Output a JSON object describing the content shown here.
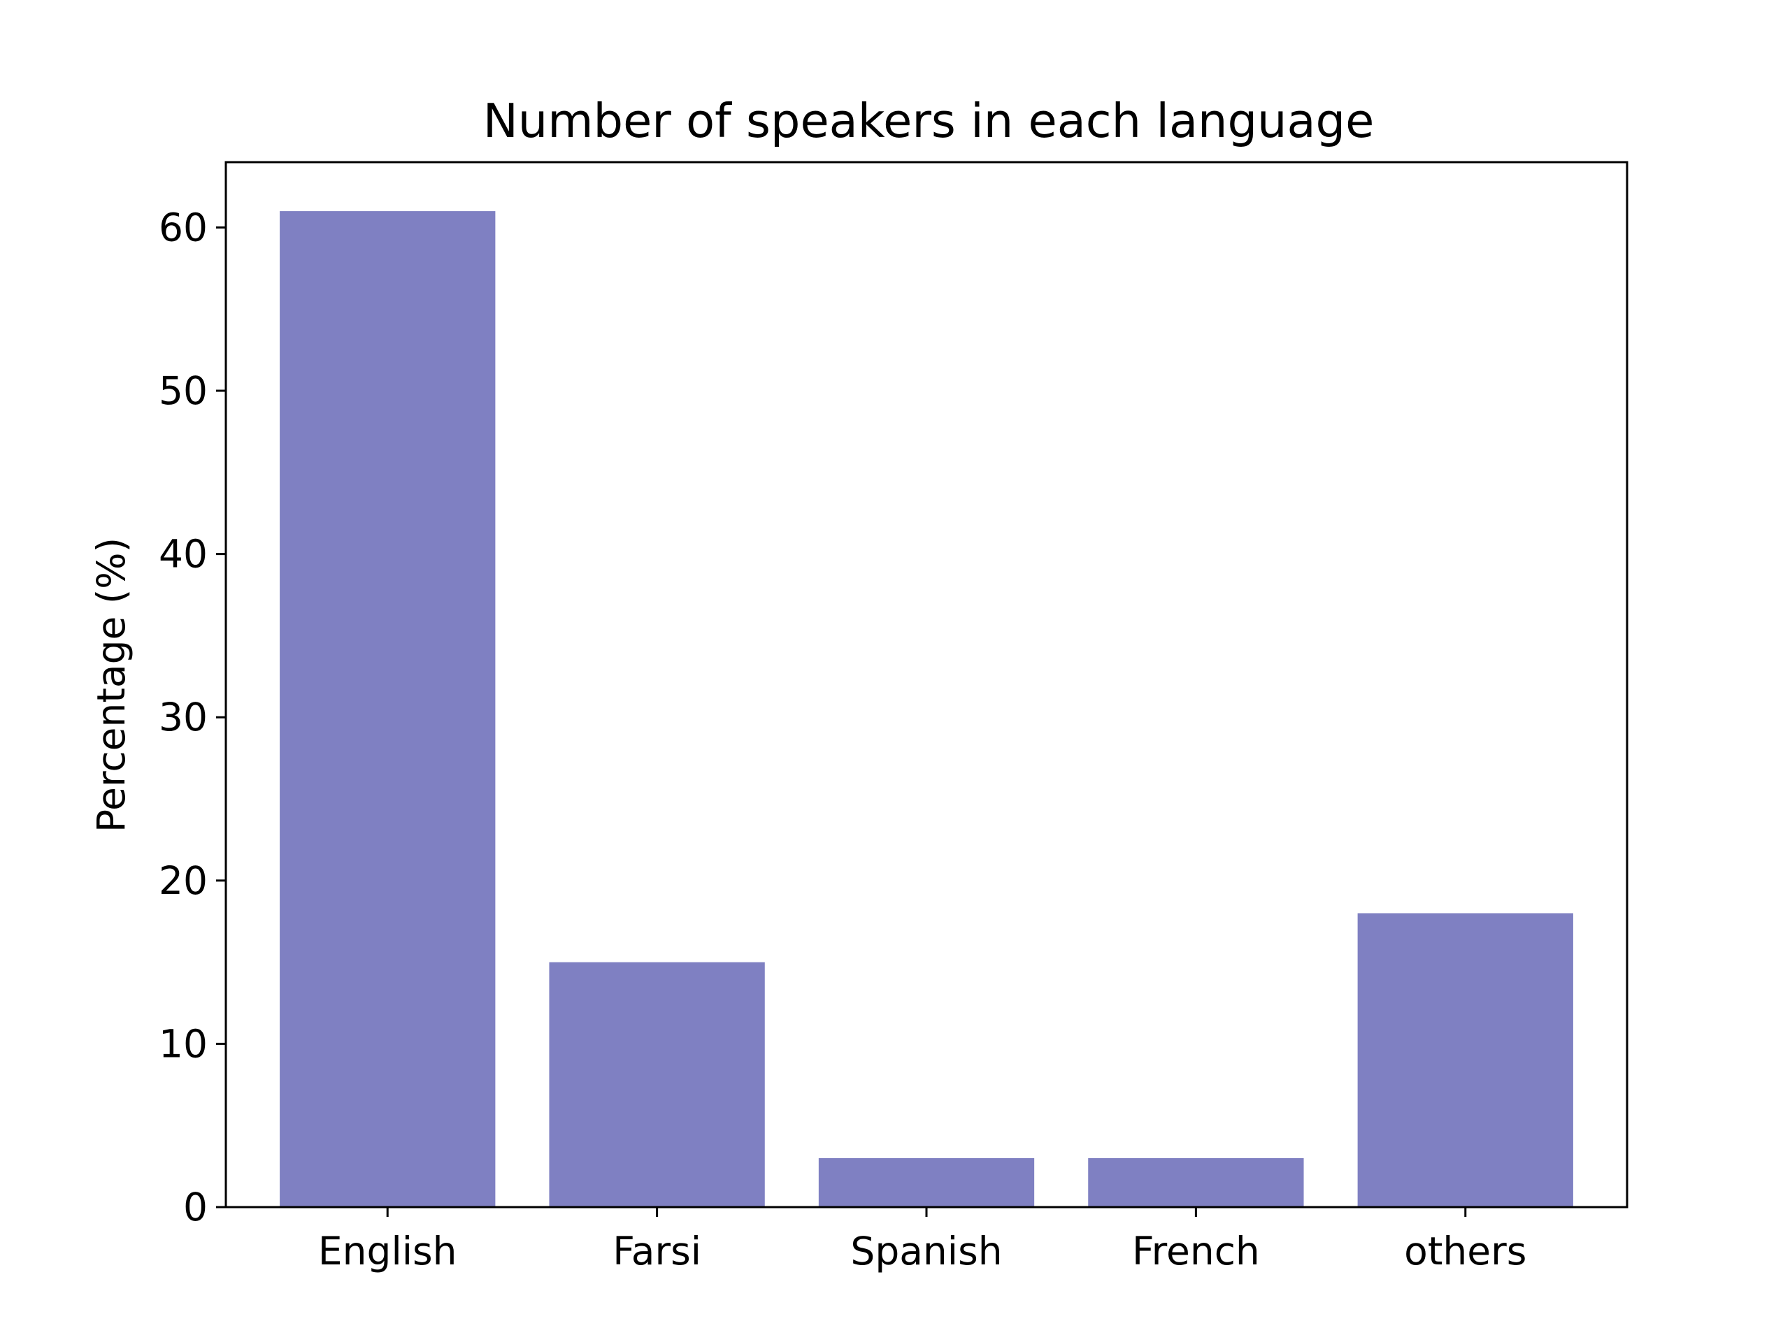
{
  "chart_data": {
    "type": "bar",
    "title": "Number of speakers in each language",
    "xlabel": "",
    "ylabel": "Percentage (%)",
    "categories": [
      "English",
      "Farsi",
      "Spanish",
      "French",
      "others"
    ],
    "values": [
      61,
      15,
      3,
      3,
      18
    ],
    "ylim": [
      0,
      64
    ],
    "yticks": [
      0,
      10,
      20,
      30,
      40,
      50,
      60
    ],
    "grid": false,
    "bar_color": "#7f80c2"
  }
}
